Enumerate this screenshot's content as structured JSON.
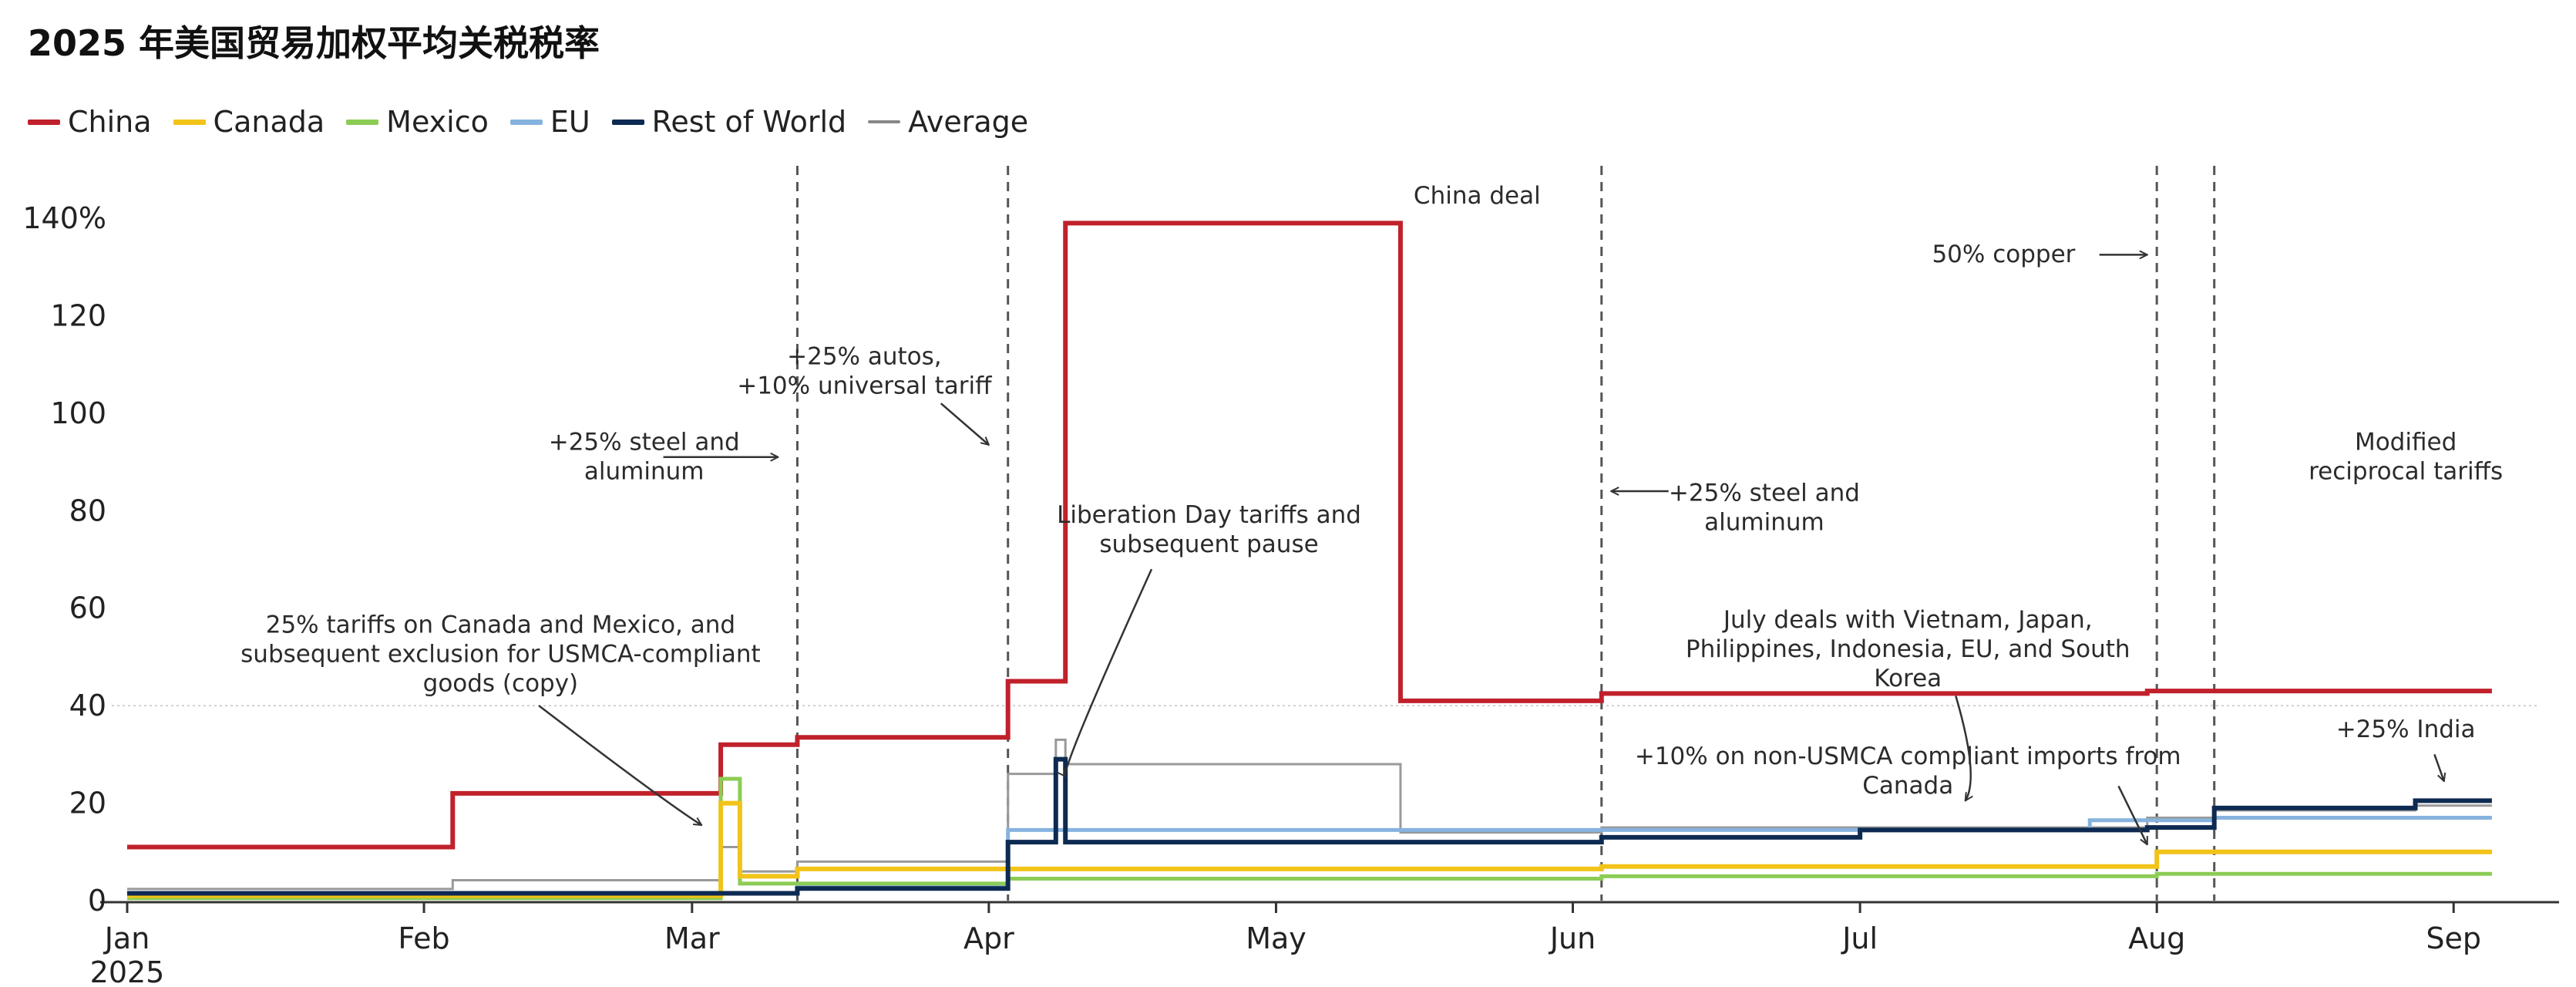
{
  "title": "2025 年美国贸易加权平均关税税率",
  "legend": [
    {
      "name": "China",
      "color": "#c0212b"
    },
    {
      "name": "Canada",
      "color": "#f2c318"
    },
    {
      "name": "Mexico",
      "color": "#8ccc55"
    },
    {
      "name": "EU",
      "color": "#86b3de"
    },
    {
      "name": "Rest of World",
      "color": "#0d2a52"
    },
    {
      "name": "Average",
      "color": "#888888"
    }
  ],
  "chart_data": {
    "type": "line",
    "step": true,
    "x_unit": "date",
    "ylim": [
      0,
      140
    ],
    "yticks": [
      0,
      20,
      40,
      60,
      80,
      100,
      120,
      140
    ],
    "ytick_labels": [
      "0",
      "20",
      "40",
      "60",
      "80",
      "100",
      "120",
      "140%"
    ],
    "xticks": [
      {
        "date": "2025-01-01",
        "label": "Jan",
        "sublabel": "2025"
      },
      {
        "date": "2025-02-01",
        "label": "Feb"
      },
      {
        "date": "2025-03-01",
        "label": "Mar"
      },
      {
        "date": "2025-04-01",
        "label": "Apr"
      },
      {
        "date": "2025-05-01",
        "label": "May"
      },
      {
        "date": "2025-06-01",
        "label": "Jun"
      },
      {
        "date": "2025-07-01",
        "label": "Jul"
      },
      {
        "date": "2025-08-01",
        "label": "Aug"
      },
      {
        "date": "2025-09-01",
        "label": "Sep"
      }
    ],
    "gridlines": [
      40
    ],
    "event_dates": [
      "2025-03-12",
      "2025-04-03",
      "2025-06-04",
      "2025-08-01",
      "2025-08-07"
    ],
    "series": [
      {
        "name": "China",
        "color": "#c0212b",
        "width": 6,
        "points": [
          [
            "2025-01-01",
            11
          ],
          [
            "2025-02-04",
            22
          ],
          [
            "2025-03-04",
            32
          ],
          [
            "2025-03-12",
            33.5
          ],
          [
            "2025-04-03",
            45
          ],
          [
            "2025-04-09",
            139
          ],
          [
            "2025-05-14",
            41
          ],
          [
            "2025-06-04",
            42.5
          ],
          [
            "2025-07-31",
            43
          ],
          [
            "2025-09-05",
            43
          ]
        ]
      },
      {
        "name": "Average",
        "color": "#999999",
        "width": 3,
        "points": [
          [
            "2025-01-01",
            2.4
          ],
          [
            "2025-02-04",
            4.2
          ],
          [
            "2025-03-04",
            11
          ],
          [
            "2025-03-06",
            6
          ],
          [
            "2025-03-12",
            8
          ],
          [
            "2025-04-03",
            26
          ],
          [
            "2025-04-08",
            33
          ],
          [
            "2025-04-09",
            28
          ],
          [
            "2025-05-14",
            14
          ],
          [
            "2025-06-04",
            15
          ],
          [
            "2025-07-01",
            15
          ],
          [
            "2025-07-31",
            17
          ],
          [
            "2025-08-07",
            18.5
          ],
          [
            "2025-08-28",
            19.5
          ],
          [
            "2025-09-05",
            19.5
          ]
        ]
      },
      {
        "name": "EU",
        "color": "#86b3de",
        "width": 5,
        "points": [
          [
            "2025-01-01",
            1.5
          ],
          [
            "2025-03-12",
            3
          ],
          [
            "2025-04-03",
            14.5
          ],
          [
            "2025-05-14",
            14.5
          ],
          [
            "2025-06-04",
            14.5
          ],
          [
            "2025-07-25",
            16.5
          ],
          [
            "2025-08-07",
            17
          ],
          [
            "2025-09-05",
            17
          ]
        ]
      },
      {
        "name": "Mexico",
        "color": "#8ccc55",
        "width": 5,
        "points": [
          [
            "2025-01-01",
            0.5
          ],
          [
            "2025-03-04",
            25
          ],
          [
            "2025-03-06",
            3.5
          ],
          [
            "2025-03-12",
            3.5
          ],
          [
            "2025-04-03",
            4.5
          ],
          [
            "2025-06-04",
            5
          ],
          [
            "2025-08-01",
            5.5
          ],
          [
            "2025-09-05",
            5.5
          ]
        ]
      },
      {
        "name": "Canada",
        "color": "#f2c318",
        "width": 6,
        "points": [
          [
            "2025-01-01",
            1
          ],
          [
            "2025-03-04",
            20
          ],
          [
            "2025-03-06",
            5
          ],
          [
            "2025-03-12",
            6.5
          ],
          [
            "2025-04-03",
            6.5
          ],
          [
            "2025-06-04",
            7
          ],
          [
            "2025-08-01",
            10
          ],
          [
            "2025-09-05",
            10
          ]
        ]
      },
      {
        "name": "Rest of World",
        "color": "#0d2a52",
        "width": 6,
        "points": [
          [
            "2025-01-01",
            1.5
          ],
          [
            "2025-03-12",
            2.5
          ],
          [
            "2025-04-03",
            12
          ],
          [
            "2025-04-08",
            29
          ],
          [
            "2025-04-09",
            12
          ],
          [
            "2025-06-04",
            13
          ],
          [
            "2025-07-01",
            14.5
          ],
          [
            "2025-07-31",
            15
          ],
          [
            "2025-08-07",
            19
          ],
          [
            "2025-08-28",
            20.5
          ],
          [
            "2025-09-05",
            20.5
          ]
        ]
      }
    ],
    "annotations": [
      {
        "text": [
          "China deal"
        ],
        "color": "#c0212b",
        "date": "2025-05-22",
        "y": 143
      },
      {
        "text": [
          "+25% steel and",
          "aluminum"
        ],
        "color": "#2b2b2b",
        "date": "2025-02-24",
        "y": 92.5
      },
      {
        "text": [
          "+25% autos,",
          "+10% universal tariff"
        ],
        "color": "#2b2b2b",
        "date": "2025-03-19",
        "y": 110
      },
      {
        "text": [
          "Liberation Day tariffs and",
          "subsequent pause"
        ],
        "color": "#0d2a52",
        "date": "2025-04-24",
        "y": 77.5
      },
      {
        "text": [
          "25% tariffs on Canada and Mexico, and",
          "subsequent exclusion for USMCA-compliant",
          "goods (copy)"
        ],
        "color": "#8a7a00",
        "date": "2025-02-09",
        "y": 55
      },
      {
        "text": [
          "+25% steel and",
          "aluminum"
        ],
        "color": "#2b2b2b",
        "date": "2025-06-21",
        "y": 82
      },
      {
        "text": [
          "July deals with Vietnam, Japan,",
          "Philippines, Indonesia, EU, and South",
          "Korea"
        ],
        "color": "#0d2a52",
        "date": "2025-07-06",
        "y": 56
      },
      {
        "text": [
          "+10% on non-USMCA compliant imports from",
          "Canada"
        ],
        "color": "#8a7a00",
        "date": "2025-07-06",
        "y": 28
      },
      {
        "text": [
          "50% copper"
        ],
        "color": "#2b2b2b",
        "date": "2025-07-16",
        "y": 131
      },
      {
        "text": [
          "Modified",
          "reciprocal tariffs"
        ],
        "color": "#2b2b2b",
        "date": "2025-08-27",
        "y": 92.5
      },
      {
        "text": [
          "+25% India"
        ],
        "color": "#0d2a52",
        "date": "2025-08-27",
        "y": 33.5
      }
    ],
    "arrows": [
      {
        "from": [
          "2025-02-26",
          91
        ],
        "to": [
          "2025-03-10",
          91
        ],
        "curve": false
      },
      {
        "from": [
          "2025-03-27",
          102
        ],
        "to": [
          "2025-04-01",
          93.5
        ],
        "curve": false
      },
      {
        "from": [
          "2025-06-11",
          84
        ],
        "to": [
          "2025-06-05",
          84
        ],
        "curve": false
      },
      {
        "from": [
          "2025-07-26",
          132.5
        ],
        "to": [
          "2025-07-31",
          132.5
        ],
        "curve": false
      },
      {
        "from": [
          "2025-04-18",
          68
        ],
        "to": [
          "2025-04-09",
          25.5
        ],
        "curve": true,
        "bend": [
          -5,
          -20
        ]
      },
      {
        "from": [
          "2025-02-13",
          40
        ],
        "to": [
          "2025-03-02",
          15.5
        ],
        "curve": true,
        "bend": [
          5,
          -8
        ]
      },
      {
        "from": [
          "2025-07-11",
          42
        ],
        "to": [
          "2025-07-12",
          20.5
        ],
        "curve": true,
        "bend": [
          2,
          -6
        ]
      },
      {
        "from": [
          "2025-07-28",
          23.5
        ],
        "to": [
          "2025-07-31",
          11.5
        ],
        "curve": true,
        "bend": [
          1,
          -4
        ]
      },
      {
        "from": [
          "2025-08-30",
          30
        ],
        "to": [
          "2025-08-31",
          24.5
        ],
        "curve": false
      }
    ]
  }
}
